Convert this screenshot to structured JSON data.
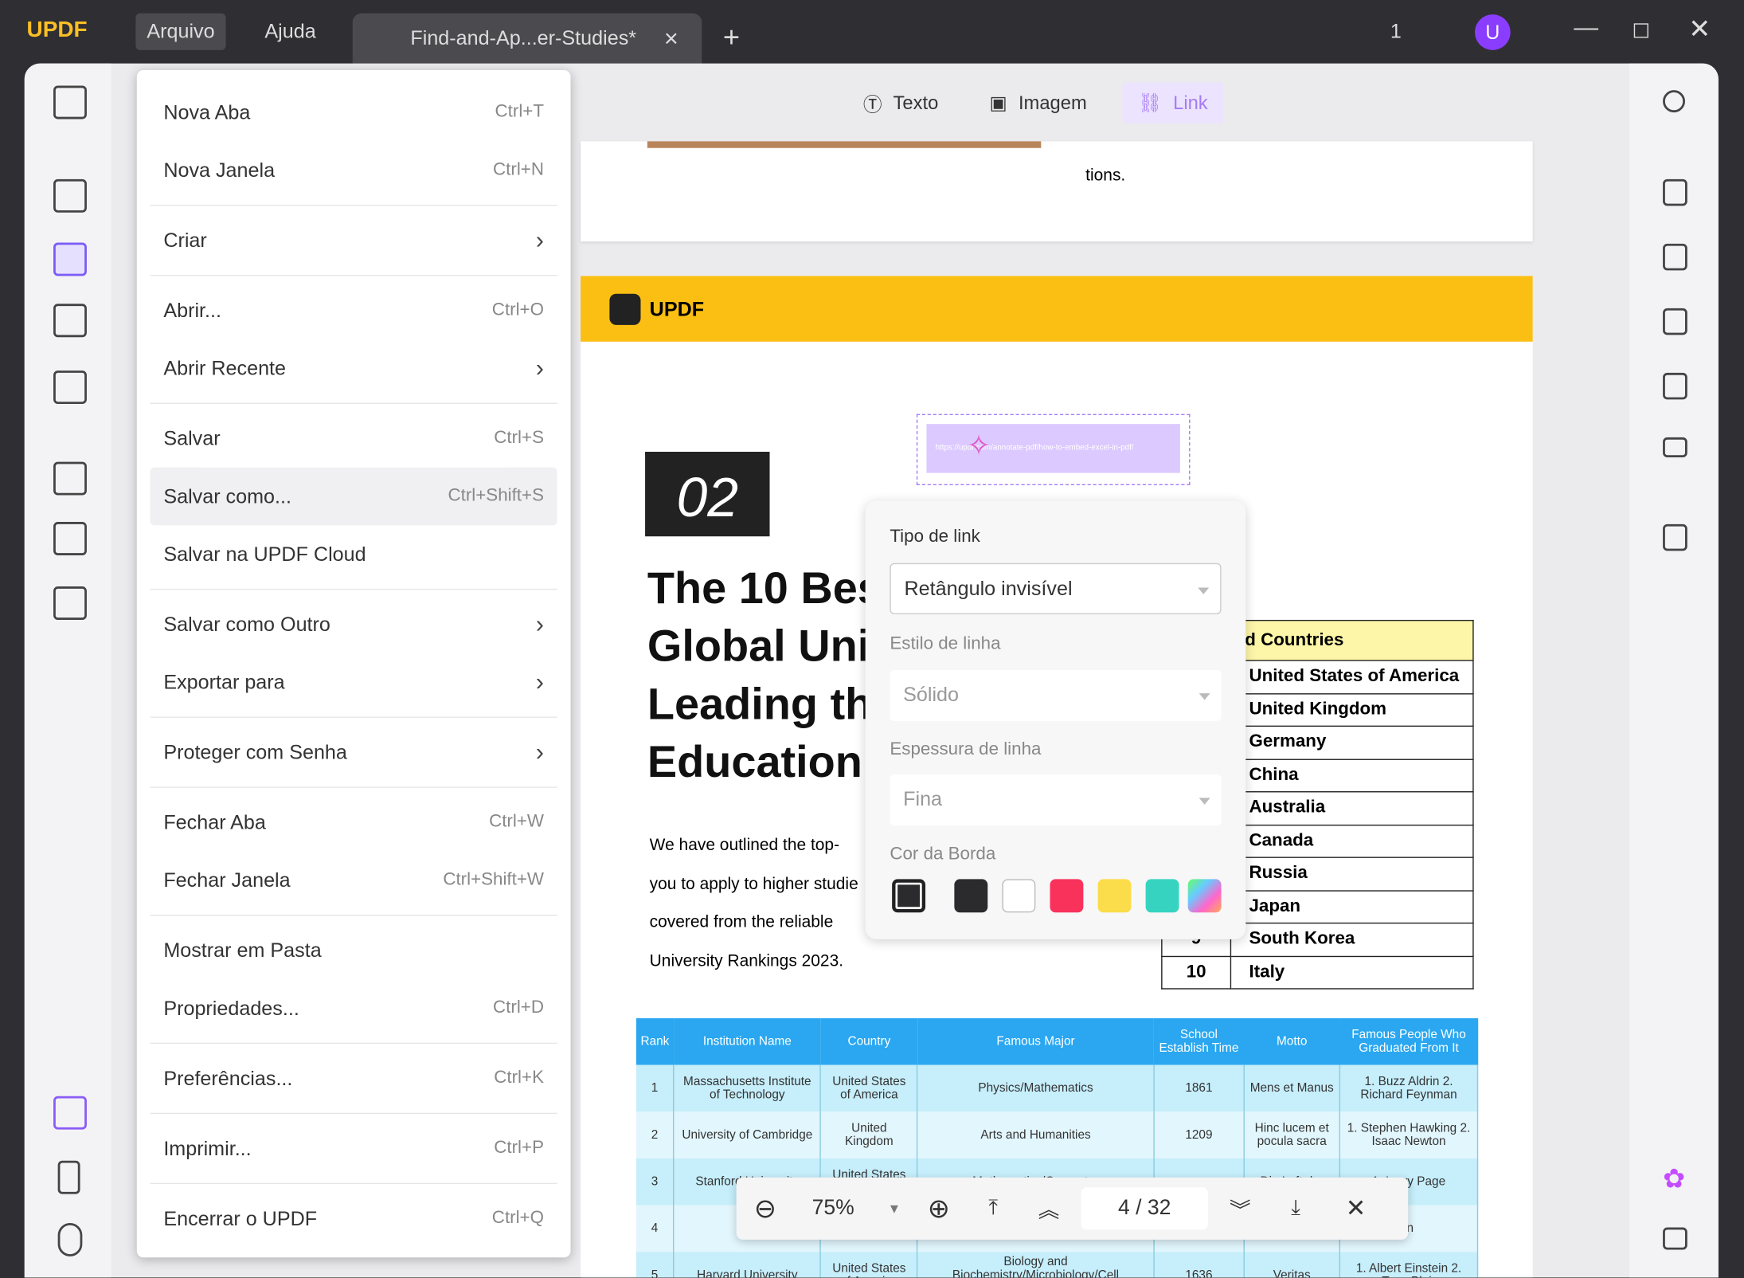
{
  "app": {
    "logo": "UPDF",
    "menus": [
      "Arquivo",
      "Ajuda"
    ],
    "tab_title": "Find-and-Ap...er-Studies*",
    "page_indicator": "1",
    "avatar": "U"
  },
  "file_menu": [
    {
      "label": "Nova Aba",
      "shortcut": "Ctrl+T"
    },
    {
      "label": "Nova Janela",
      "shortcut": "Ctrl+N"
    },
    {
      "label": "Criar",
      "submenu": true
    },
    {
      "label": "Abrir...",
      "shortcut": "Ctrl+O"
    },
    {
      "label": "Abrir Recente",
      "submenu": true
    },
    {
      "label": "Salvar",
      "shortcut": "Ctrl+S"
    },
    {
      "label": "Salvar como...",
      "shortcut": "Ctrl+Shift+S",
      "highlighted": true
    },
    {
      "label": "Salvar na UPDF Cloud"
    },
    {
      "label": "Salvar como Outro",
      "submenu": true
    },
    {
      "label": "Exportar para",
      "submenu": true
    },
    {
      "label": "Proteger com Senha",
      "submenu": true
    },
    {
      "label": "Fechar Aba",
      "shortcut": "Ctrl+W"
    },
    {
      "label": "Fechar Janela",
      "shortcut": "Ctrl+Shift+W"
    },
    {
      "label": "Mostrar em Pasta"
    },
    {
      "label": "Propriedades...",
      "shortcut": "Ctrl+D"
    },
    {
      "label": "Preferências...",
      "shortcut": "Ctrl+K"
    },
    {
      "label": "Imprimir...",
      "shortcut": "Ctrl+P"
    },
    {
      "label": "Encerrar o UPDF",
      "shortcut": "Ctrl+Q"
    }
  ],
  "toolbar": {
    "texto": "Texto",
    "imagem": "Imagem",
    "link": "Link",
    "accent": "#a57cf5"
  },
  "doc": {
    "top_text": "tions.",
    "banner_logo": "UPDF",
    "number": "02",
    "heading": [
      "The 10 Bes",
      "Global Uni",
      "Leading th",
      "Education"
    ],
    "para": [
      "We have outlined the top-",
      "you to apply to higher studie",
      "covered from the reliable",
      "University Rankings 2023."
    ],
    "link_url": "https://updf.com/annotate-pdf/how-to-embed-excel-in-pdf/",
    "ranked_header": "p Ranked Countries",
    "ranked": [
      {
        "r": "",
        "c": "United States of America"
      },
      {
        "r": "",
        "c": "United Kingdom"
      },
      {
        "r": "",
        "c": "Germany"
      },
      {
        "r": "",
        "c": "China"
      },
      {
        "r": "",
        "c": "Australia"
      },
      {
        "r": "",
        "c": "Canada"
      },
      {
        "r": "",
        "c": "Russia"
      },
      {
        "r": "",
        "c": "Japan"
      },
      {
        "r": "9",
        "c": "South Korea"
      },
      {
        "r": "10",
        "c": "Italy"
      }
    ],
    "table_headers": [
      "Rank",
      "Institution Name",
      "Country",
      "Famous Major",
      "School Establish Time",
      "Motto",
      "Famous People Who Graduated From It"
    ],
    "table_rows": [
      [
        "1",
        "Massachusetts Institute of Technology",
        "United States of America",
        "Physics/Mathematics",
        "1861",
        "Mens et Manus",
        "1. Buzz Aldrin 2. Richard Feynman"
      ],
      [
        "2",
        "University of Cambridge",
        "United Kingdom",
        "Arts and Humanities",
        "1209",
        "Hinc lucem et pocula sacra",
        "1. Stephen Hawking 2. Isaac Newton"
      ],
      [
        "3",
        "Stanford University",
        "United States of",
        "Mathematics/Computer",
        "",
        "Die Luft der",
        "1. Larry Page"
      ],
      [
        "4",
        "Uni",
        "",
        "",
        "",
        "",
        "in"
      ],
      [
        "5",
        "Harvard University",
        "United States of America",
        "Biology and Biochemistry/Microbiology/Cell Biology/Op-",
        "1636",
        "Veritas",
        "1. Albert Einstein 2. Tony Blair"
      ]
    ]
  },
  "link_panel": {
    "type_label": "Tipo de link",
    "type_value": "Retângulo invisível",
    "style_label": "Estilo de linha",
    "style_value": "Sólido",
    "width_label": "Espessura de linha",
    "width_value": "Fina",
    "color_label": "Cor da Borda",
    "colors": [
      "#2b2b2e",
      "#ffffff",
      "#f9325c",
      "#fbdc4a",
      "#36d4c0"
    ]
  },
  "zoom_bar": {
    "zoom": "75%",
    "page": "4",
    "total": "32"
  }
}
